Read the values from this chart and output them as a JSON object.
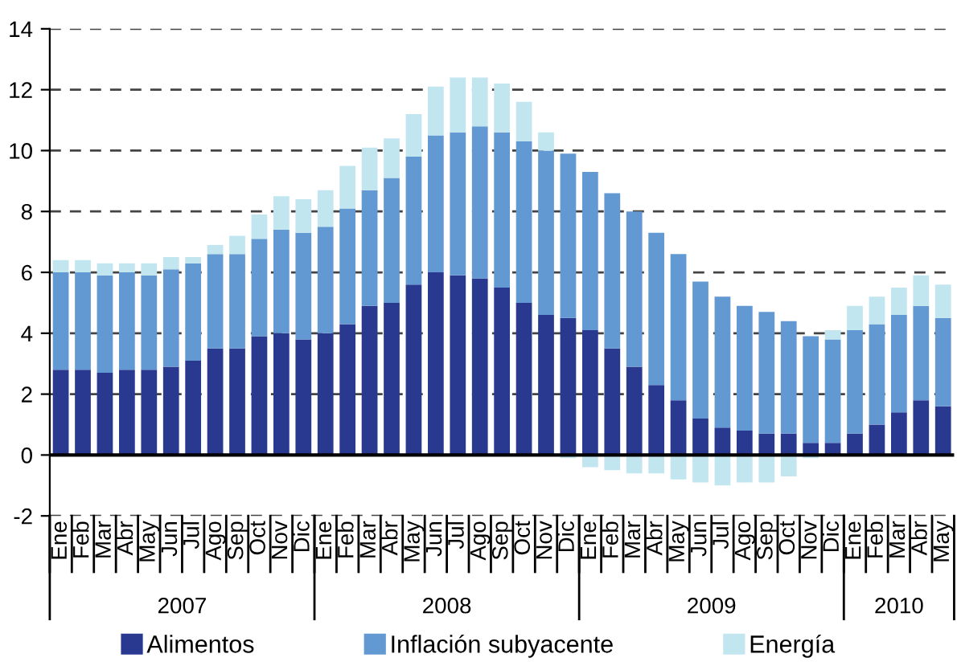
{
  "chart_data": {
    "type": "bar",
    "stacked": true,
    "categories": [
      "Ene",
      "Feb",
      "Mar",
      "Abr",
      "May",
      "Jun",
      "Jul",
      "Ago",
      "Sep",
      "Oct",
      "Nov",
      "Dic",
      "Ene",
      "Feb",
      "Mar",
      "Abr",
      "May",
      "Jun",
      "Jul",
      "Ago",
      "Sep",
      "Oct",
      "Nov",
      "Dic",
      "Ene",
      "Feb",
      "Mar",
      "Abr",
      "May",
      "Jun",
      "Jul",
      "Ago",
      "Sep",
      "Oct",
      "Nov",
      "Dic",
      "Ene",
      "Feb",
      "Mar",
      "Abr",
      "May"
    ],
    "series": [
      {
        "name": "Alimentos",
        "color": "#2a3990",
        "values": [
          2.8,
          2.8,
          2.7,
          2.8,
          2.8,
          2.9,
          3.1,
          3.5,
          3.5,
          3.9,
          4.0,
          3.8,
          4.0,
          4.3,
          4.9,
          5.0,
          5.6,
          6.0,
          5.9,
          5.8,
          5.5,
          5.0,
          4.6,
          4.5,
          4.1,
          3.5,
          2.9,
          2.3,
          1.8,
          1.2,
          0.9,
          0.8,
          0.7,
          0.7,
          0.4,
          0.4,
          0.7,
          1.0,
          1.4,
          1.8,
          1.6
        ]
      },
      {
        "name": "Inflación subyacente",
        "color": "#6399d3",
        "values": [
          3.2,
          3.2,
          3.2,
          3.2,
          3.1,
          3.2,
          3.2,
          3.1,
          3.1,
          3.2,
          3.4,
          3.5,
          3.5,
          3.8,
          3.8,
          4.1,
          4.2,
          4.5,
          4.7,
          5.0,
          5.1,
          5.3,
          5.4,
          5.4,
          5.2,
          5.1,
          5.1,
          5.0,
          4.8,
          4.5,
          4.3,
          4.1,
          4.0,
          3.7,
          3.5,
          3.4,
          3.4,
          3.3,
          3.2,
          3.1,
          2.9
        ]
      },
      {
        "name": "Energía",
        "color": "#c2e6ef",
        "values": [
          0.4,
          0.4,
          0.4,
          0.3,
          0.4,
          0.4,
          0.2,
          0.3,
          0.6,
          0.8,
          1.1,
          1.1,
          1.2,
          1.4,
          1.4,
          1.3,
          1.4,
          1.6,
          1.8,
          1.6,
          1.6,
          1.3,
          0.6,
          -0.1,
          -0.4,
          -0.5,
          -0.6,
          -0.6,
          -0.8,
          -0.9,
          -1.0,
          -0.9,
          -0.9,
          -0.7,
          -0.1,
          0.3,
          0.8,
          0.9,
          0.9,
          1.0,
          1.1
        ]
      }
    ],
    "ylim": [
      -2,
      14
    ],
    "yticks": [
      -2,
      0,
      2,
      4,
      6,
      8,
      10,
      12,
      14
    ],
    "grid": "y",
    "legend": "bottom",
    "annotations": [
      "2007",
      "2008",
      "2009",
      "2010"
    ]
  }
}
